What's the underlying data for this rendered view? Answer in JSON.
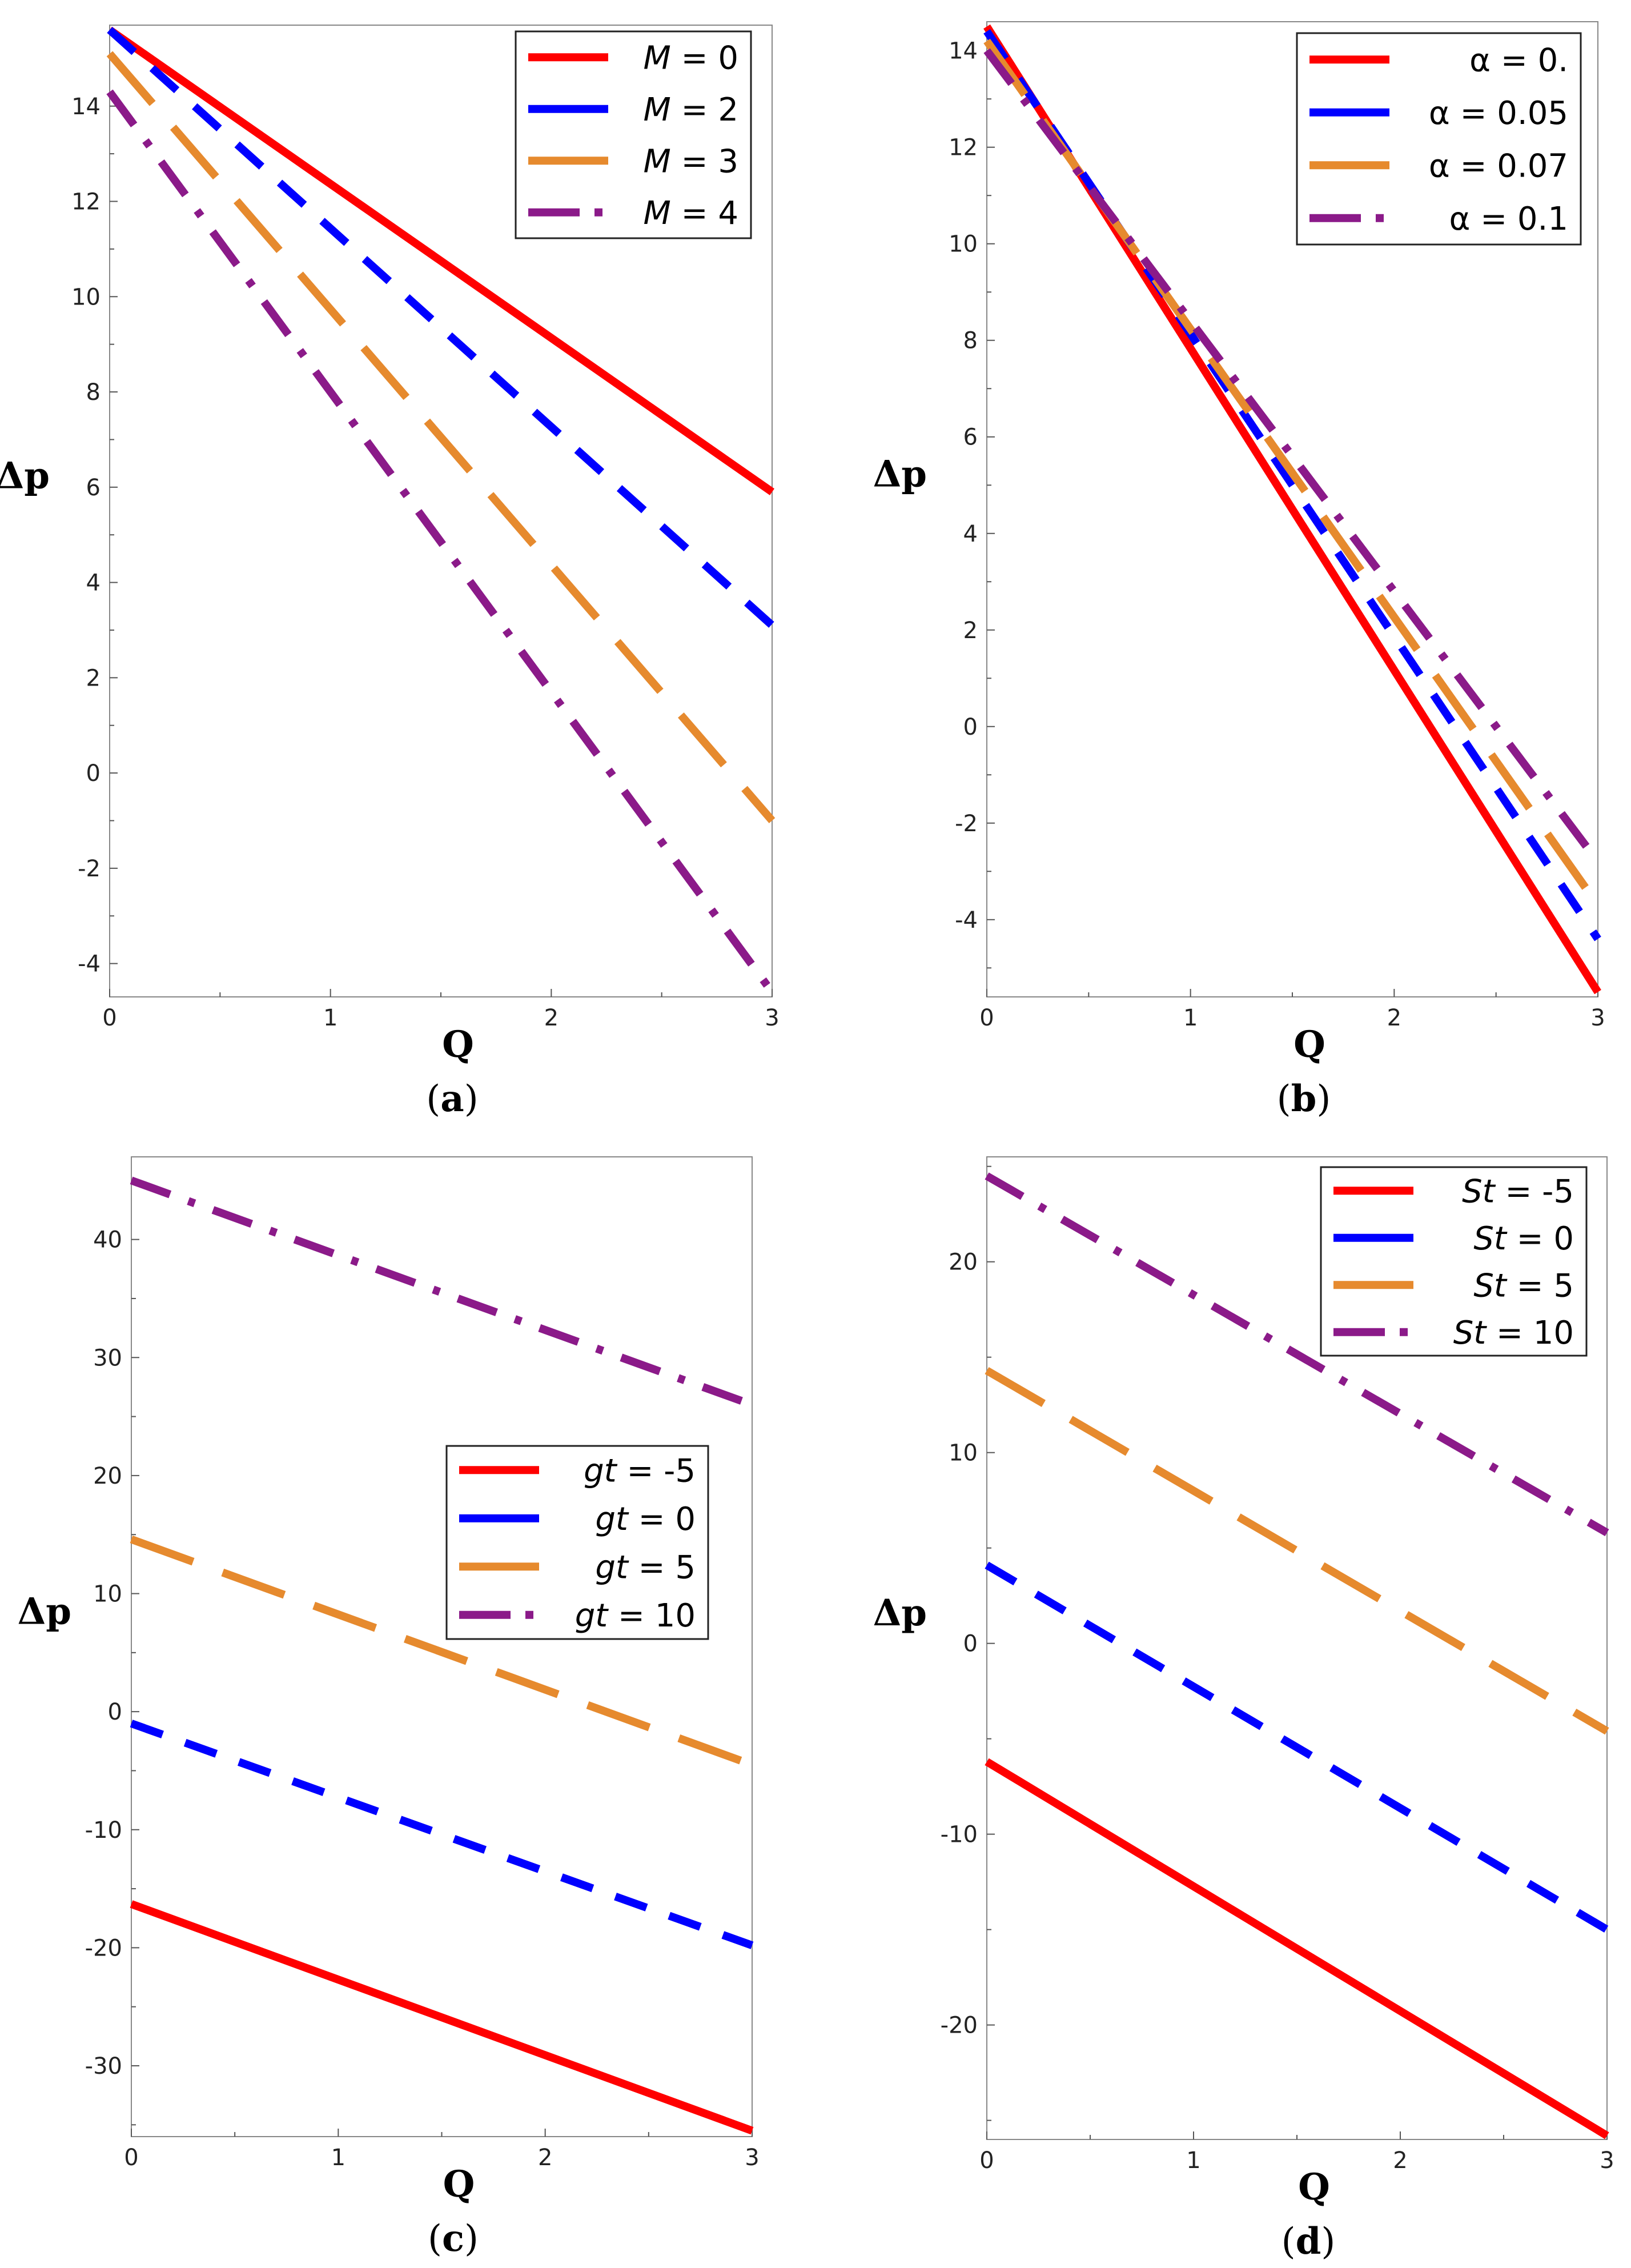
{
  "chart_data": [
    {
      "type": "line",
      "panel_label": "a",
      "xlabel": "Q",
      "ylabel": "Δp",
      "xlim": [
        0,
        3
      ],
      "ylim": [
        -4.7,
        15.7
      ],
      "xticks": [
        0,
        1,
        2,
        3
      ],
      "yticks": [
        -4,
        -2,
        0,
        2,
        4,
        6,
        8,
        10,
        12,
        14
      ],
      "legend_position": "top-right",
      "series": [
        {
          "name": "M = 0",
          "param": "M",
          "value": "0",
          "color": "#ff0000",
          "dash": "solid",
          "x": [
            0,
            3
          ],
          "y": [
            15.6,
            5.9
          ]
        },
        {
          "name": "M = 2",
          "param": "M",
          "value": "2",
          "color": "#0000ff",
          "dash": "dash",
          "x": [
            0,
            3
          ],
          "y": [
            15.6,
            3.1
          ]
        },
        {
          "name": "M = 3",
          "param": "M",
          "value": "3",
          "color": "#e68a2e",
          "dash": "longdash",
          "x": [
            0,
            3
          ],
          "y": [
            15.1,
            -1.0
          ]
        },
        {
          "name": "M = 4",
          "param": "M",
          "value": "4",
          "color": "#8b1a89",
          "dash": "dashdot",
          "x": [
            0,
            3
          ],
          "y": [
            14.3,
            -4.6
          ]
        }
      ]
    },
    {
      "type": "line",
      "panel_label": "b",
      "xlabel": "Q",
      "ylabel": "Δp",
      "xlim": [
        0,
        3
      ],
      "ylim": [
        -5.6,
        14.6
      ],
      "xticks": [
        0,
        1,
        2,
        3
      ],
      "yticks": [
        -4,
        -2,
        0,
        2,
        4,
        6,
        8,
        10,
        12,
        14
      ],
      "legend_position": "top-right",
      "series": [
        {
          "name": "α = 0.",
          "param": "α",
          "value": "0.",
          "color": "#ff0000",
          "dash": "solid",
          "x": [
            0,
            3
          ],
          "y": [
            14.5,
            -5.5
          ]
        },
        {
          "name": "α = 0.05",
          "param": "α",
          "value": "0.05",
          "color": "#0000ff",
          "dash": "dash",
          "x": [
            0,
            3
          ],
          "y": [
            14.4,
            -4.4
          ]
        },
        {
          "name": "α = 0.07",
          "param": "α",
          "value": "0.07",
          "color": "#e68a2e",
          "dash": "longdash",
          "x": [
            0,
            3
          ],
          "y": [
            14.2,
            -3.7
          ]
        },
        {
          "name": "α = 0.1",
          "param": "α",
          "value": "0.1",
          "color": "#8b1a89",
          "dash": "dashdot",
          "x": [
            0,
            3
          ],
          "y": [
            14.0,
            -2.8
          ]
        }
      ]
    },
    {
      "type": "line",
      "panel_label": "c",
      "xlabel": "Q",
      "ylabel": "Δp",
      "xlim": [
        0,
        3
      ],
      "ylim": [
        -36,
        47
      ],
      "xticks": [
        0,
        1,
        2,
        3
      ],
      "yticks": [
        -30,
        -20,
        -10,
        0,
        10,
        20,
        30,
        40
      ],
      "legend_position": "center-right",
      "series": [
        {
          "name": "gt = -5",
          "param": "gt",
          "value": "-5",
          "color": "#ff0000",
          "dash": "solid",
          "x": [
            0,
            3
          ],
          "y": [
            -16.3,
            -35.5
          ]
        },
        {
          "name": "gt = 0",
          "param": "gt",
          "value": "0",
          "color": "#0000ff",
          "dash": "dash",
          "x": [
            0,
            3
          ],
          "y": [
            -1.0,
            -19.8
          ]
        },
        {
          "name": "gt = 5",
          "param": "gt",
          "value": "5",
          "color": "#e68a2e",
          "dash": "longdash",
          "x": [
            0,
            3
          ],
          "y": [
            14.6,
            -4.5
          ]
        },
        {
          "name": "gt = 10",
          "param": "gt",
          "value": "10",
          "color": "#8b1a89",
          "dash": "dashdot",
          "x": [
            0,
            3
          ],
          "y": [
            45.0,
            26.0
          ]
        }
      ]
    },
    {
      "type": "line",
      "panel_label": "d",
      "xlabel": "Q",
      "ylabel": "Δp",
      "xlim": [
        0,
        3
      ],
      "ylim": [
        -26,
        25.5
      ],
      "xticks": [
        0,
        1,
        2,
        3
      ],
      "yticks": [
        -20,
        -10,
        0,
        10,
        20
      ],
      "legend_position": "top-right",
      "series": [
        {
          "name": "St = -5",
          "param": "St",
          "value": "-5",
          "color": "#ff0000",
          "dash": "solid",
          "x": [
            0,
            3
          ],
          "y": [
            -6.2,
            -25.8
          ]
        },
        {
          "name": "St = 0",
          "param": "St",
          "value": "0",
          "color": "#0000ff",
          "dash": "dash",
          "x": [
            0,
            3
          ],
          "y": [
            4.1,
            -15.0
          ]
        },
        {
          "name": "St = 5",
          "param": "St",
          "value": "5",
          "color": "#e68a2e",
          "dash": "longdash",
          "x": [
            0,
            3
          ],
          "y": [
            14.3,
            -4.6
          ]
        },
        {
          "name": "St = 10",
          "param": "St",
          "value": "10",
          "color": "#8b1a89",
          "dash": "dashdot",
          "x": [
            0,
            3
          ],
          "y": [
            24.5,
            5.8
          ]
        }
      ]
    }
  ]
}
